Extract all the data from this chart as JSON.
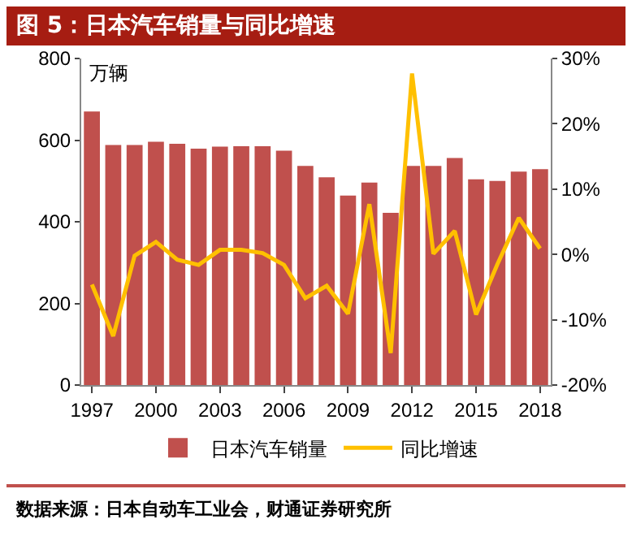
{
  "chart_data": {
    "type": "bar",
    "title": "图 5：日本汽车销量与同比增速",
    "ylabel": "万辆",
    "x": [
      1997,
      1998,
      1999,
      2000,
      2001,
      2002,
      2003,
      2004,
      2005,
      2006,
      2007,
      2008,
      2009,
      2010,
      2011,
      2012,
      2013,
      2014,
      2015,
      2016,
      2017,
      2018
    ],
    "xlim": [
      1996.5,
      2018.5
    ],
    "xticks": [
      1997,
      2000,
      2003,
      2006,
      2009,
      2012,
      2015,
      2018
    ],
    "ylim": [
      0,
      800
    ],
    "yticks": [
      0,
      200,
      400,
      600,
      800
    ],
    "y2lim": [
      -20,
      30
    ],
    "y2ticks": [
      {
        "value": -20,
        "label": "-20%"
      },
      {
        "value": -10,
        "label": "-10%"
      },
      {
        "value": 0,
        "label": "0%"
      },
      {
        "value": 10,
        "label": "10%"
      },
      {
        "value": 20,
        "label": "20%"
      },
      {
        "value": 30,
        "label": "30%"
      }
    ],
    "series": [
      {
        "name": "日本汽车销量",
        "color": "#c0504d",
        "values": [
          670,
          588,
          588,
          596,
          591,
          579,
          584,
          585,
          585,
          574,
          537,
          509,
          464,
          496,
          422,
          537,
          537,
          556,
          504,
          500,
          523,
          529
        ]
      },
      {
        "name": "同比增速",
        "type": "line",
        "axis": "y2",
        "color": "#ffc000",
        "values": [
          -4.6,
          -12.5,
          -0.2,
          1.9,
          -0.8,
          -1.6,
          0.7,
          0.7,
          0.2,
          -1.6,
          -6.7,
          -4.8,
          -9.1,
          7.7,
          -15.1,
          27.7,
          0.1,
          3.6,
          -9.2,
          -1.5,
          5.6,
          0.9
        ]
      }
    ],
    "legend": "bottom",
    "grid": false,
    "annotations": [
      "数据来源：日本自动车工业会，财通证券研究所"
    ]
  }
}
